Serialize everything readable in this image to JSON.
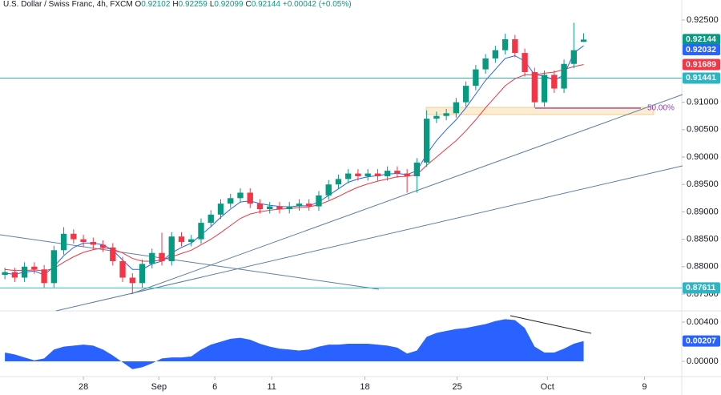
{
  "chart_data": {
    "type": "candlestick",
    "title": "U.S. Dollar / Swiss Franc, 4h, FXCM",
    "ohlc_labels": [
      "O",
      "H",
      "L",
      "C"
    ],
    "change": "+0.00042 (+0.05%)",
    "open": [
      0.8785,
      0.879,
      0.878,
      0.88,
      0.8795,
      0.877,
      0.883,
      0.886,
      0.885,
      0.8845,
      0.884,
      0.8835,
      0.881,
      0.878,
      0.877,
      0.8805,
      0.8825,
      0.881,
      0.8855,
      0.8845,
      0.885,
      0.888,
      0.8895,
      0.8915,
      0.8925,
      0.8935,
      0.8915,
      0.8905,
      0.891,
      0.8905,
      0.891,
      0.8915,
      0.891,
      0.893,
      0.895,
      0.896,
      0.897,
      0.8965,
      0.897,
      0.8965,
      0.8975,
      0.897,
      0.8965,
      0.899,
      0.907,
      0.9075,
      0.908,
      0.91,
      0.913,
      0.916,
      0.918,
      0.9195,
      0.9215,
      0.919,
      0.9155,
      0.91,
      0.915,
      0.9125,
      0.917,
      0.92102
    ],
    "high": [
      0.8798,
      0.8798,
      0.8808,
      0.8808,
      0.8803,
      0.8838,
      0.8872,
      0.8868,
      0.8858,
      0.8853,
      0.8848,
      0.8843,
      0.8818,
      0.8788,
      0.8813,
      0.8833,
      0.8862,
      0.8863,
      0.8863,
      0.8858,
      0.8888,
      0.8903,
      0.8923,
      0.8933,
      0.8943,
      0.8943,
      0.8923,
      0.8918,
      0.8918,
      0.8918,
      0.8923,
      0.8923,
      0.8938,
      0.8958,
      0.8968,
      0.8978,
      0.8978,
      0.8978,
      0.8978,
      0.8983,
      0.8983,
      0.8978,
      0.8998,
      0.9085,
      0.9083,
      0.9088,
      0.9108,
      0.9138,
      0.9168,
      0.9188,
      0.9203,
      0.9225,
      0.9223,
      0.9198,
      0.9163,
      0.9158,
      0.9158,
      0.9178,
      0.9245,
      0.92259
    ],
    "low": [
      0.8777,
      0.8772,
      0.8772,
      0.8787,
      0.8762,
      0.8762,
      0.8822,
      0.8842,
      0.8837,
      0.8832,
      0.8827,
      0.8802,
      0.8772,
      0.875,
      0.8762,
      0.8797,
      0.8802,
      0.8802,
      0.8837,
      0.8837,
      0.8842,
      0.8872,
      0.8887,
      0.8907,
      0.8917,
      0.8907,
      0.8897,
      0.8897,
      0.8897,
      0.8897,
      0.8902,
      0.8902,
      0.8902,
      0.8922,
      0.8942,
      0.8952,
      0.8957,
      0.8957,
      0.8957,
      0.8957,
      0.8962,
      0.8935,
      0.8935,
      0.8982,
      0.9062,
      0.9067,
      0.9072,
      0.9092,
      0.9122,
      0.9152,
      0.9172,
      0.9187,
      0.9182,
      0.9147,
      0.909,
      0.9092,
      0.9117,
      0.9117,
      0.9162,
      0.92099
    ],
    "close": [
      0.879,
      0.878,
      0.88,
      0.8795,
      0.877,
      0.883,
      0.886,
      0.885,
      0.8845,
      0.884,
      0.8835,
      0.881,
      0.878,
      0.877,
      0.8805,
      0.8825,
      0.881,
      0.8855,
      0.8845,
      0.885,
      0.888,
      0.8895,
      0.8915,
      0.8925,
      0.8935,
      0.8915,
      0.8905,
      0.891,
      0.8905,
      0.891,
      0.8915,
      0.891,
      0.893,
      0.895,
      0.896,
      0.897,
      0.8965,
      0.897,
      0.8965,
      0.8975,
      0.897,
      0.8965,
      0.899,
      0.907,
      0.9075,
      0.908,
      0.91,
      0.913,
      0.916,
      0.918,
      0.9195,
      0.9215,
      0.919,
      0.9155,
      0.91,
      0.915,
      0.9125,
      0.917,
      0.9195,
      0.92144
    ],
    "up_color": "#089981",
    "down_color": "#f23645",
    "ma_fast": {
      "color": "#2962ff",
      "values": [
        0.8788,
        0.8786,
        0.879,
        0.8792,
        0.8785,
        0.88,
        0.882,
        0.8835,
        0.8843,
        0.8843,
        0.884,
        0.883,
        0.8812,
        0.8795,
        0.8795,
        0.8805,
        0.881,
        0.8825,
        0.8835,
        0.8843,
        0.8858,
        0.8873,
        0.889,
        0.8905,
        0.8918,
        0.892,
        0.8915,
        0.8912,
        0.891,
        0.8909,
        0.8911,
        0.8911,
        0.8918,
        0.893,
        0.8942,
        0.8954,
        0.896,
        0.8964,
        0.8966,
        0.8969,
        0.897,
        0.8968,
        0.8975,
        0.9005,
        0.903,
        0.905,
        0.9068,
        0.909,
        0.9115,
        0.914,
        0.916,
        0.918,
        0.9185,
        0.9175,
        0.915,
        0.9148,
        0.914,
        0.915,
        0.919,
        0.92032
      ]
    },
    "ma_slow": {
      "color": "#f23645",
      "values": [
        0.8795,
        0.8793,
        0.8793,
        0.8794,
        0.8792,
        0.8797,
        0.8808,
        0.8818,
        0.8826,
        0.8831,
        0.8834,
        0.8832,
        0.8825,
        0.8815,
        0.881,
        0.881,
        0.8812,
        0.8818,
        0.8824,
        0.883,
        0.884,
        0.885,
        0.8862,
        0.8875,
        0.8888,
        0.8896,
        0.89,
        0.8903,
        0.8905,
        0.8906,
        0.8908,
        0.8909,
        0.8913,
        0.892,
        0.8928,
        0.8937,
        0.8945,
        0.8951,
        0.8956,
        0.896,
        0.8964,
        0.8965,
        0.8968,
        0.8985,
        0.9,
        0.9015,
        0.903,
        0.9048,
        0.9068,
        0.909,
        0.911,
        0.913,
        0.9143,
        0.915,
        0.915,
        0.9153,
        0.9155,
        0.916,
        0.9165,
        0.91689
      ]
    },
    "hlines": [
      {
        "value": 0.91441,
        "color": "#2fb4c4"
      },
      {
        "value": 0.87611,
        "color": "#2fb4c4"
      }
    ],
    "fib_label": "50.00%",
    "ylim": [
      0.87237,
      0.92866
    ],
    "yticks": [
      {
        "value": 0.925,
        "label": "0.92500"
      },
      {
        "value": 0.91,
        "label": "0.91000"
      },
      {
        "value": 0.905,
        "label": "0.90500"
      },
      {
        "value": 0.9,
        "label": "0.90000"
      },
      {
        "value": 0.895,
        "label": "0.89500"
      },
      {
        "value": 0.89,
        "label": "0.89000"
      },
      {
        "value": 0.885,
        "label": "0.88500"
      },
      {
        "value": 0.88,
        "label": "0.88000"
      },
      {
        "value": 0.875,
        "label": "0.87500"
      }
    ],
    "xlim": [
      -0.5,
      69
    ],
    "xticks": [
      {
        "value": 8,
        "label": "28"
      },
      {
        "value": 15.7,
        "label": "Sep"
      },
      {
        "value": 21.4,
        "label": "6"
      },
      {
        "value": 27.2,
        "label": "11"
      },
      {
        "value": 36.7,
        "label": "18"
      },
      {
        "value": 46.1,
        "label": "25"
      },
      {
        "value": 55.3,
        "label": "Oct"
      },
      {
        "value": 65.2,
        "label": "9"
      }
    ],
    "oscillator": {
      "color": "#2962ff",
      "values": [
        0.0009,
        0.0007,
        0.0004,
        0.0001,
        0.0003,
        0.0012,
        0.0015,
        0.0016,
        0.0017,
        0.0016,
        0.0012,
        0.0006,
        -0.0001,
        -0.0008,
        -0.0006,
        -0.0002,
        0.0003,
        0.0004,
        0.0004,
        0.0005,
        0.0012,
        0.0017,
        0.002,
        0.0023,
        0.0024,
        0.0022,
        0.0018,
        0.0015,
        0.0013,
        0.0012,
        0.0011,
        0.0012,
        0.0015,
        0.0017,
        0.0017,
        0.0018,
        0.0018,
        0.0018,
        0.0017,
        0.0016,
        0.0014,
        0.0008,
        0.0011,
        0.0025,
        0.0029,
        0.0031,
        0.0033,
        0.0034,
        0.0036,
        0.0038,
        0.0041,
        0.0043,
        0.0042,
        0.0034,
        0.0015,
        0.0009,
        0.0009,
        0.0013,
        0.0018,
        0.00207
      ],
      "ylim": [
        -0.00155,
        0.00498
      ],
      "yticks": [
        {
          "value": 0.004,
          "label": "0.00400"
        },
        {
          "value": 0,
          "label": "0.00000"
        }
      ]
    }
  }
}
